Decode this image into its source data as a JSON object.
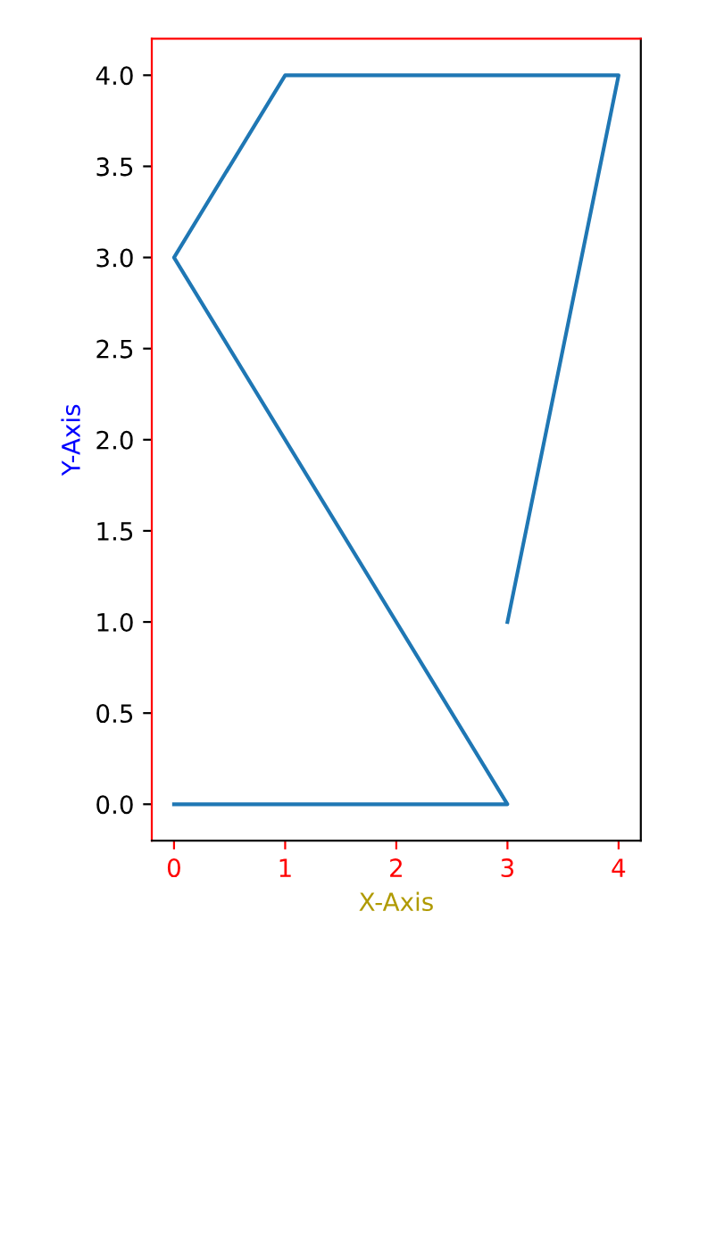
{
  "chart_data": {
    "type": "line",
    "xlabel": "X-Axis",
    "ylabel": "Y-Axis",
    "series": [
      {
        "color": "#1f77b4",
        "x": [
          0,
          3,
          0,
          1,
          4,
          3
        ],
        "values": [
          0,
          0,
          3,
          4,
          4,
          1
        ]
      }
    ],
    "xlim": [
      -0.2,
      4.2
    ],
    "ylim": [
      -0.2,
      4.2
    ],
    "xticks": [
      0,
      1,
      2,
      3,
      4
    ],
    "yticks": [
      {
        "value": 0,
        "label": "0.0"
      },
      {
        "value": 0.5,
        "label": "0.5"
      },
      {
        "value": 1,
        "label": "1.0"
      },
      {
        "value": 1.5,
        "label": "1.5"
      },
      {
        "value": 2,
        "label": "2.0"
      },
      {
        "value": 2.5,
        "label": "2.5"
      },
      {
        "value": 3,
        "label": "3.0"
      },
      {
        "value": 3.5,
        "label": "3.5"
      },
      {
        "value": 4,
        "label": "4.0"
      }
    ],
    "grid": false,
    "marker": "none",
    "line_style": "solid"
  }
}
